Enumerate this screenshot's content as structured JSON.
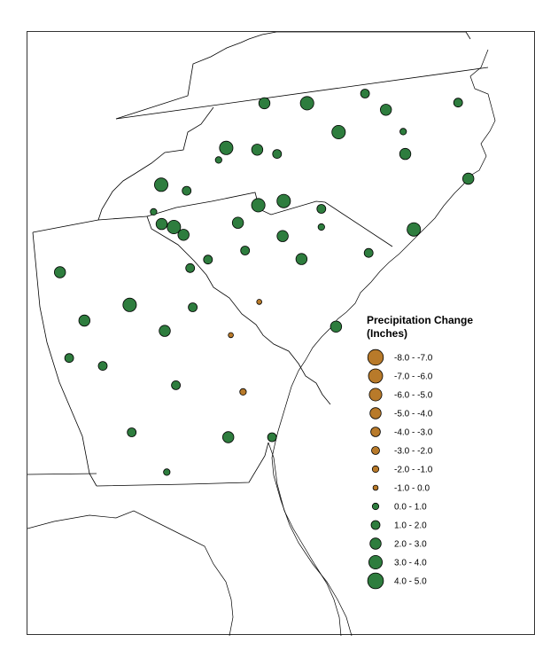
{
  "legend": {
    "title_line1": "Precipitation Change",
    "title_line2": "(Inches)",
    "classes": [
      {
        "label": "-8.0 - -7.0",
        "sign": "negative",
        "magnitude": 8
      },
      {
        "label": "-7.0 - -6.0",
        "sign": "negative",
        "magnitude": 7
      },
      {
        "label": "-6.0 - -5.0",
        "sign": "negative",
        "magnitude": 6
      },
      {
        "label": "-5.0 - -4.0",
        "sign": "negative",
        "magnitude": 5
      },
      {
        "label": "-4.0 - -3.0",
        "sign": "negative",
        "magnitude": 4
      },
      {
        "label": "-3.0 - -2.0",
        "sign": "negative",
        "magnitude": 3
      },
      {
        "label": "-2.0 - -1.0",
        "sign": "negative",
        "magnitude": 2
      },
      {
        "label": "-1.0 - 0.0",
        "sign": "negative",
        "magnitude": 1
      },
      {
        "label": "0.0 - 1.0",
        "sign": "positive",
        "magnitude": 1
      },
      {
        "label": "1.0 - 2.0",
        "sign": "positive",
        "magnitude": 2
      },
      {
        "label": "2.0 - 3.0",
        "sign": "positive",
        "magnitude": 3
      },
      {
        "label": "3.0 - 4.0",
        "sign": "positive",
        "magnitude": 4
      },
      {
        "label": "4.0 - 5.0",
        "sign": "positive",
        "magnitude": 5
      }
    ]
  },
  "colors": {
    "positive": "#2e7d3e",
    "negative": "#b87a2a",
    "border": "#000000"
  },
  "stations": [
    {
      "sign": "positive",
      "magnitude": 3,
      "mx": 0.466,
      "my": 0.118
    },
    {
      "sign": "positive",
      "magnitude": 4,
      "mx": 0.55,
      "my": 0.118
    },
    {
      "sign": "positive",
      "magnitude": 2,
      "mx": 0.664,
      "my": 0.102
    },
    {
      "sign": "positive",
      "magnitude": 3,
      "mx": 0.705,
      "my": 0.129
    },
    {
      "sign": "positive",
      "magnitude": 2,
      "mx": 0.847,
      "my": 0.117
    },
    {
      "sign": "positive",
      "magnitude": 4,
      "mx": 0.612,
      "my": 0.166
    },
    {
      "sign": "positive",
      "magnitude": 1,
      "mx": 0.739,
      "my": 0.165
    },
    {
      "sign": "positive",
      "magnitude": 4,
      "mx": 0.391,
      "my": 0.192
    },
    {
      "sign": "positive",
      "magnitude": 3,
      "mx": 0.452,
      "my": 0.195
    },
    {
      "sign": "positive",
      "magnitude": 2,
      "mx": 0.491,
      "my": 0.202
    },
    {
      "sign": "positive",
      "magnitude": 3,
      "mx": 0.743,
      "my": 0.202
    },
    {
      "sign": "positive",
      "magnitude": 1,
      "mx": 0.376,
      "my": 0.212
    },
    {
      "sign": "positive",
      "magnitude": 4,
      "mx": 0.263,
      "my": 0.253
    },
    {
      "sign": "positive",
      "magnitude": 2,
      "mx": 0.313,
      "my": 0.263
    },
    {
      "sign": "positive",
      "magnitude": 4,
      "mx": 0.504,
      "my": 0.28
    },
    {
      "sign": "positive",
      "magnitude": 4,
      "mx": 0.454,
      "my": 0.287
    },
    {
      "sign": "positive",
      "magnitude": 2,
      "mx": 0.578,
      "my": 0.293
    },
    {
      "sign": "positive",
      "magnitude": 1,
      "mx": 0.248,
      "my": 0.298
    },
    {
      "sign": "positive",
      "magnitude": 3,
      "mx": 0.867,
      "my": 0.243
    },
    {
      "sign": "positive",
      "magnitude": 3,
      "mx": 0.264,
      "my": 0.318
    },
    {
      "sign": "positive",
      "magnitude": 4,
      "mx": 0.288,
      "my": 0.323
    },
    {
      "sign": "positive",
      "magnitude": 3,
      "mx": 0.307,
      "my": 0.336
    },
    {
      "sign": "positive",
      "magnitude": 3,
      "mx": 0.414,
      "my": 0.316
    },
    {
      "sign": "positive",
      "magnitude": 1,
      "mx": 0.578,
      "my": 0.323
    },
    {
      "sign": "positive",
      "magnitude": 3,
      "mx": 0.502,
      "my": 0.338
    },
    {
      "sign": "positive",
      "magnitude": 4,
      "mx": 0.76,
      "my": 0.327
    },
    {
      "sign": "positive",
      "magnitude": 2,
      "mx": 0.428,
      "my": 0.362
    },
    {
      "sign": "positive",
      "magnitude": 2,
      "mx": 0.355,
      "my": 0.377
    },
    {
      "sign": "positive",
      "magnitude": 2,
      "mx": 0.32,
      "my": 0.391
    },
    {
      "sign": "positive",
      "magnitude": 3,
      "mx": 0.539,
      "my": 0.376
    },
    {
      "sign": "positive",
      "magnitude": 2,
      "mx": 0.671,
      "my": 0.366
    },
    {
      "sign": "positive",
      "magnitude": 3,
      "mx": 0.064,
      "my": 0.398
    },
    {
      "sign": "positive",
      "magnitude": 4,
      "mx": 0.201,
      "my": 0.452
    },
    {
      "sign": "positive",
      "magnitude": 2,
      "mx": 0.325,
      "my": 0.456
    },
    {
      "sign": "negative",
      "magnitude": 1,
      "mx": 0.456,
      "my": 0.447
    },
    {
      "sign": "positive",
      "magnitude": 3,
      "mx": 0.112,
      "my": 0.478
    },
    {
      "sign": "positive",
      "magnitude": 3,
      "mx": 0.27,
      "my": 0.495
    },
    {
      "sign": "negative",
      "magnitude": 1,
      "mx": 0.4,
      "my": 0.502
    },
    {
      "sign": "positive",
      "magnitude": 3,
      "mx": 0.607,
      "my": 0.488
    },
    {
      "sign": "positive",
      "magnitude": 2,
      "mx": 0.082,
      "my": 0.54
    },
    {
      "sign": "positive",
      "magnitude": 2,
      "mx": 0.148,
      "my": 0.553
    },
    {
      "sign": "positive",
      "magnitude": 2,
      "mx": 0.292,
      "my": 0.585
    },
    {
      "sign": "negative",
      "magnitude": 2,
      "mx": 0.424,
      "my": 0.596
    },
    {
      "sign": "positive",
      "magnitude": 2,
      "mx": 0.205,
      "my": 0.663
    },
    {
      "sign": "positive",
      "magnitude": 3,
      "mx": 0.395,
      "my": 0.671
    },
    {
      "sign": "positive",
      "magnitude": 2,
      "mx": 0.481,
      "my": 0.671
    },
    {
      "sign": "positive",
      "magnitude": 1,
      "mx": 0.274,
      "my": 0.729
    }
  ]
}
